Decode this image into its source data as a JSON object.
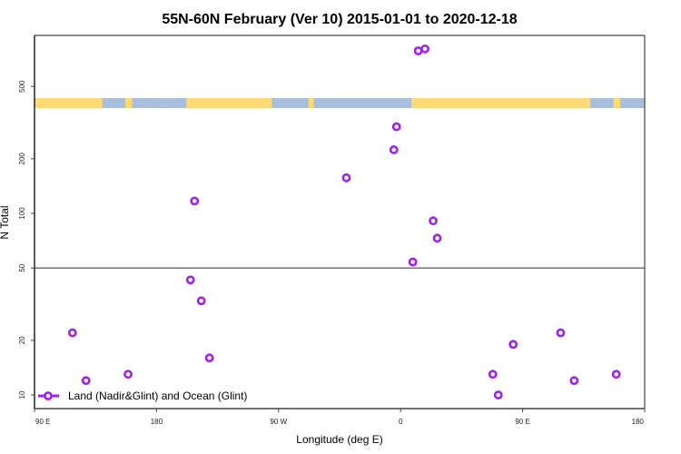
{
  "chart_data": {
    "type": "scatter",
    "title": "55N-60N February (Ver 10)   2015-01-01 to 2020-12-18",
    "xlabel": "Longitude (deg E)",
    "ylabel": "N Total",
    "y_scale": "log",
    "ylim": [
      8.4,
      970
    ],
    "x_range_deg_east": [
      "90 E",
      "180"
    ],
    "x_wraps_full_globe_plus": true,
    "xticks": [
      "90 E",
      "180",
      "90 W",
      "0",
      "90 E",
      "180"
    ],
    "yticks": [
      "10",
      "20",
      "50",
      "100",
      "200",
      "500"
    ],
    "reference_line_y": 50,
    "grid": false,
    "legend_position": "bottom-left",
    "series": [
      {
        "name": "Land (Nadir&Glint) and Ocean (Glint)",
        "color": "#a020f0",
        "marker": "open-circle",
        "points": [
          {
            "lon": 118,
            "n": 22
          },
          {
            "lon": 128,
            "n": 12
          },
          {
            "lon": 159,
            "n": 13
          },
          {
            "lon": -155,
            "n": 43
          },
          {
            "lon": -152,
            "n": 117
          },
          {
            "lon": -147,
            "n": 33
          },
          {
            "lon": -141,
            "n": 16
          },
          {
            "lon": -40,
            "n": 157
          },
          {
            "lon": -5,
            "n": 224
          },
          {
            "lon": -3,
            "n": 300
          },
          {
            "lon": 9,
            "n": 54
          },
          {
            "lon": 13,
            "n": 785
          },
          {
            "lon": 18,
            "n": 805
          },
          {
            "lon": 24,
            "n": 91
          },
          {
            "lon": 27,
            "n": 73
          },
          {
            "lon": 68,
            "n": 13
          },
          {
            "lon": 72,
            "n": 10
          },
          {
            "lon": 83,
            "n": 19
          }
        ]
      }
    ],
    "land_ocean_band": {
      "land_color": "#ffd976",
      "ocean_color": "#a8bedc",
      "ocean_ranges_lon": [
        [
          140,
          157
        ],
        [
          162,
          180
        ],
        [
          -180,
          -158
        ],
        [
          -95,
          -68
        ],
        [
          -64,
          8
        ]
      ]
    }
  }
}
